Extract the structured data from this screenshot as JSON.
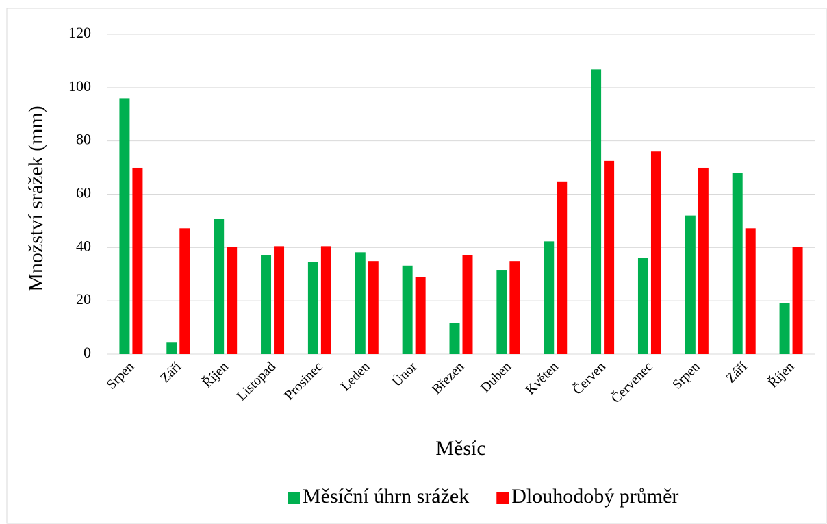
{
  "chart_data": {
    "type": "bar",
    "y_label": "Množství srážek (mm)",
    "x_label": "Měsíc",
    "categories": [
      "Srpen",
      "Září",
      "Říjen",
      "Listopad",
      "Prosinec",
      "Leden",
      "Únor",
      "Březen",
      "Duben",
      "Květen",
      "Červen",
      "Červenec",
      "Srpen",
      "Září",
      "Říjen"
    ],
    "series": [
      {
        "name": "Měsíční úhrn srážek",
        "color": "#00b050",
        "values": [
          96,
          4.3,
          50.8,
          37,
          34.6,
          38.2,
          33.2,
          11.6,
          31.6,
          42.3,
          106.8,
          36.1,
          52,
          68,
          19.1
        ]
      },
      {
        "name": "Dlouhodobý průměr",
        "color": "#ff0000",
        "values": [
          69.9,
          47.2,
          40.1,
          40.5,
          40.5,
          34.9,
          29,
          37.2,
          34.9,
          64.8,
          72.5,
          76,
          69.9,
          47.2,
          40.1
        ]
      }
    ],
    "ylim": [
      0,
      120
    ],
    "yticks": [
      0,
      20,
      40,
      60,
      80,
      100,
      120
    ],
    "grid": true,
    "legend": "bottom"
  }
}
